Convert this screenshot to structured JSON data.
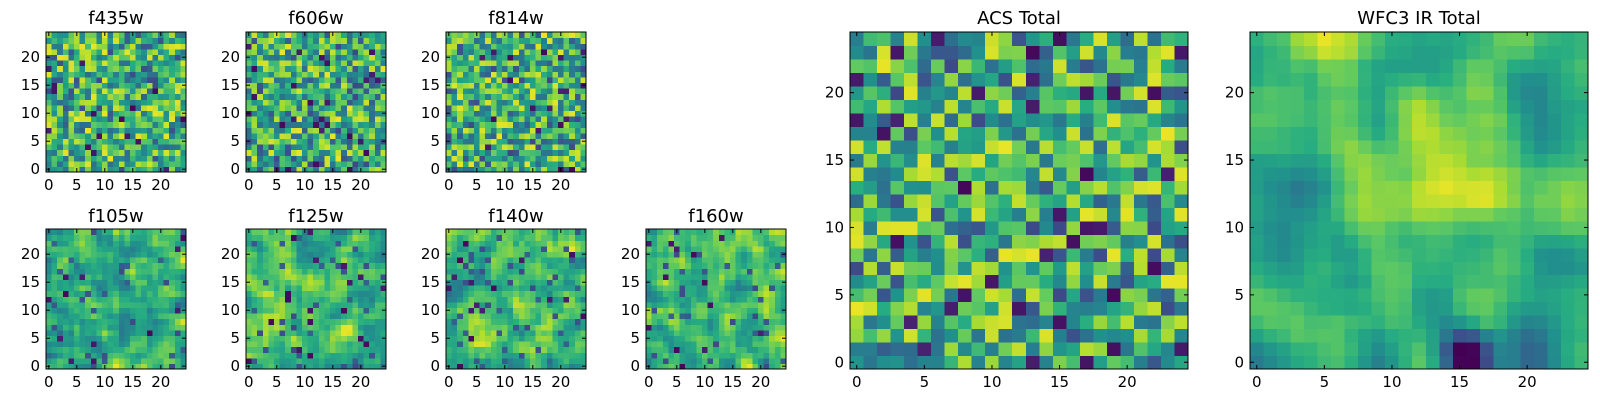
{
  "figure": {
    "background": "#ffffff"
  },
  "colormap": {
    "name": "viridis",
    "stops": [
      "#440154",
      "#472c7a",
      "#3b518b",
      "#2c718e",
      "#21908d",
      "#27ad81",
      "#5cc863",
      "#aadc32",
      "#fde725"
    ],
    "vmin": 0,
    "vmax": 1
  },
  "chart_data": [
    {
      "id": "f435w",
      "type": "heatmap",
      "title": "f435w",
      "grid_size": 25,
      "seed": 11,
      "smooth": 0,
      "dark_fraction": 0.03,
      "xlim": [
        0,
        24
      ],
      "ylim": [
        0,
        24
      ],
      "xticks": [
        0,
        5,
        10,
        15,
        20
      ],
      "yticks": [
        0,
        5,
        10,
        15,
        20
      ]
    },
    {
      "id": "f606w",
      "type": "heatmap",
      "title": "f606w",
      "grid_size": 25,
      "seed": 23,
      "smooth": 0,
      "dark_fraction": 0.04,
      "xlim": [
        0,
        24
      ],
      "ylim": [
        0,
        24
      ],
      "xticks": [
        0,
        5,
        10,
        15,
        20
      ],
      "yticks": [
        0,
        5,
        10,
        15,
        20
      ]
    },
    {
      "id": "f814w",
      "type": "heatmap",
      "title": "f814w",
      "grid_size": 25,
      "seed": 37,
      "smooth": 0,
      "dark_fraction": 0.03,
      "xlim": [
        0,
        24
      ],
      "ylim": [
        0,
        24
      ],
      "xticks": [
        0,
        5,
        10,
        15,
        20
      ],
      "yticks": [
        0,
        5,
        10,
        15,
        20
      ]
    },
    {
      "id": "f105w",
      "type": "heatmap",
      "title": "f105w",
      "grid_size": 25,
      "seed": 41,
      "smooth": 1,
      "dark_fraction": 0.02,
      "xlim": [
        0,
        24
      ],
      "ylim": [
        0,
        24
      ],
      "xticks": [
        0,
        5,
        10,
        15,
        20
      ],
      "yticks": [
        0,
        5,
        10,
        15,
        20
      ]
    },
    {
      "id": "f125w",
      "type": "heatmap",
      "title": "f125w",
      "grid_size": 25,
      "seed": 53,
      "smooth": 1,
      "dark_fraction": 0.03,
      "xlim": [
        0,
        24
      ],
      "ylim": [
        0,
        24
      ],
      "xticks": [
        0,
        5,
        10,
        15,
        20
      ],
      "yticks": [
        0,
        5,
        10,
        15,
        20
      ]
    },
    {
      "id": "f140w",
      "type": "heatmap",
      "title": "f140w",
      "grid_size": 25,
      "seed": 67,
      "smooth": 1,
      "dark_fraction": 0.03,
      "xlim": [
        0,
        24
      ],
      "ylim": [
        0,
        24
      ],
      "xticks": [
        0,
        5,
        10,
        15,
        20
      ],
      "yticks": [
        0,
        5,
        10,
        15,
        20
      ]
    },
    {
      "id": "f160w",
      "type": "heatmap",
      "title": "f160w",
      "grid_size": 25,
      "seed": 79,
      "smooth": 1,
      "dark_fraction": 0.02,
      "xlim": [
        0,
        24
      ],
      "ylim": [
        0,
        24
      ],
      "xticks": [
        0,
        5,
        10,
        15,
        20
      ],
      "yticks": [
        0,
        5,
        10,
        15,
        20
      ]
    },
    {
      "id": "acs-total",
      "type": "heatmap",
      "title": "ACS Total",
      "grid_size": 25,
      "seed": 97,
      "smooth": 0,
      "dark_fraction": 0.04,
      "xlim": [
        0,
        24
      ],
      "ylim": [
        0,
        24
      ],
      "xticks": [
        0,
        5,
        10,
        15,
        20
      ],
      "yticks": [
        0,
        5,
        10,
        15,
        20
      ]
    },
    {
      "id": "wfc3-ir-total",
      "type": "heatmap",
      "title": "WFC3 IR Total",
      "grid_size": 25,
      "seed": 131,
      "smooth": 2,
      "dark_fraction": 0.0,
      "xlim": [
        0,
        24
      ],
      "ylim": [
        0,
        24
      ],
      "xticks": [
        0,
        5,
        10,
        15,
        20
      ],
      "yticks": [
        0,
        5,
        10,
        15,
        20
      ],
      "features": {
        "bright_blob": {
          "center": [
            14,
            14
          ],
          "sigma": 3.2,
          "amplitude": 0.35
        },
        "dark_patch": {
          "center": [
            15.5,
            0.5
          ],
          "sigma": 1.6,
          "amplitude": -0.9
        },
        "dim_region": {
          "center": [
            2,
            11
          ],
          "sigma": 3.5,
          "amplitude": -0.25
        }
      }
    }
  ]
}
